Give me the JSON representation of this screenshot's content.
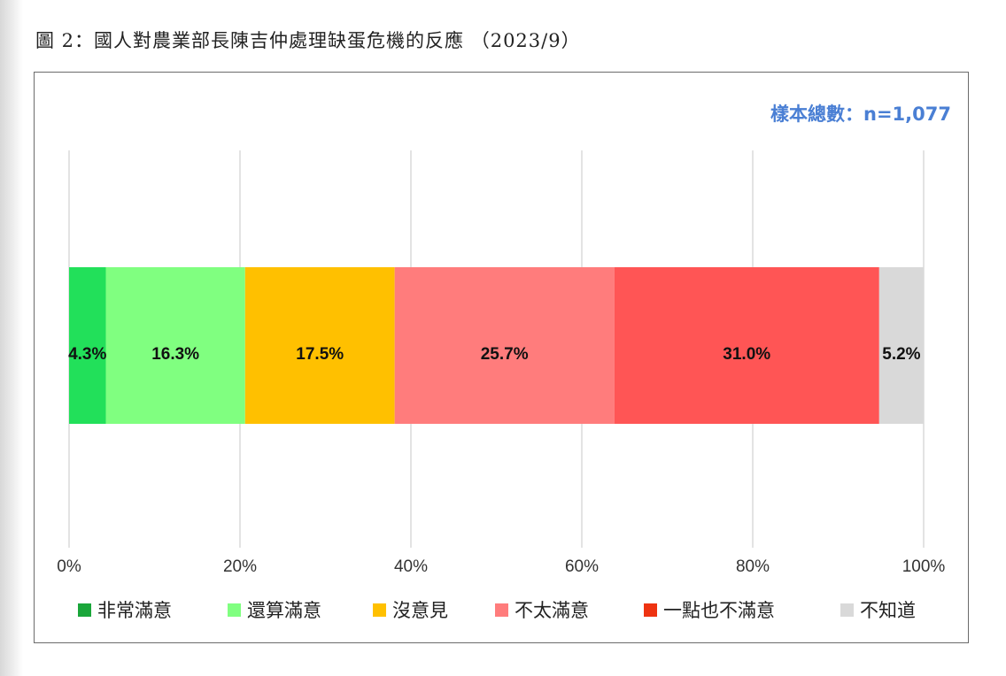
{
  "figure": {
    "title": "圖 2：國人對農業部長陳吉仲處理缺蛋危機的反應 （2023/9）",
    "sample_note": "樣本總數：n=1,077",
    "sample_note_color": "#4a7fd4"
  },
  "chart_data": {
    "type": "bar",
    "orientation": "horizontal",
    "stacked": true,
    "categories": [
      ""
    ],
    "series": [
      {
        "name": "非常滿意",
        "values": [
          4.3
        ],
        "label": "4.3%",
        "color": "#22e05a",
        "legend_color": "#1aa63a"
      },
      {
        "name": "還算滿意",
        "values": [
          16.3
        ],
        "label": "16.3%",
        "color": "#80ff80",
        "legend_color": "#80ff80"
      },
      {
        "name": "沒意見",
        "values": [
          17.5
        ],
        "label": "17.5%",
        "color": "#ffc000",
        "legend_color": "#ffc000"
      },
      {
        "name": "不太滿意",
        "values": [
          25.7
        ],
        "label": "25.7%",
        "color": "#ff7c7c",
        "legend_color": "#ff7c7c"
      },
      {
        "name": "一點也不滿意",
        "values": [
          31.0
        ],
        "label": "31.0%",
        "color": "#ff5555",
        "legend_color": "#ee3311"
      },
      {
        "name": "不知道",
        "values": [
          5.2
        ],
        "label": "5.2%",
        "color": "#d9d9d9",
        "legend_color": "#d9d9d9"
      }
    ],
    "xlim": [
      0,
      100
    ],
    "x_ticks": [
      "0%",
      "20%",
      "40%",
      "60%",
      "80%",
      "100%"
    ],
    "grid": true,
    "legend_position": "bottom"
  }
}
